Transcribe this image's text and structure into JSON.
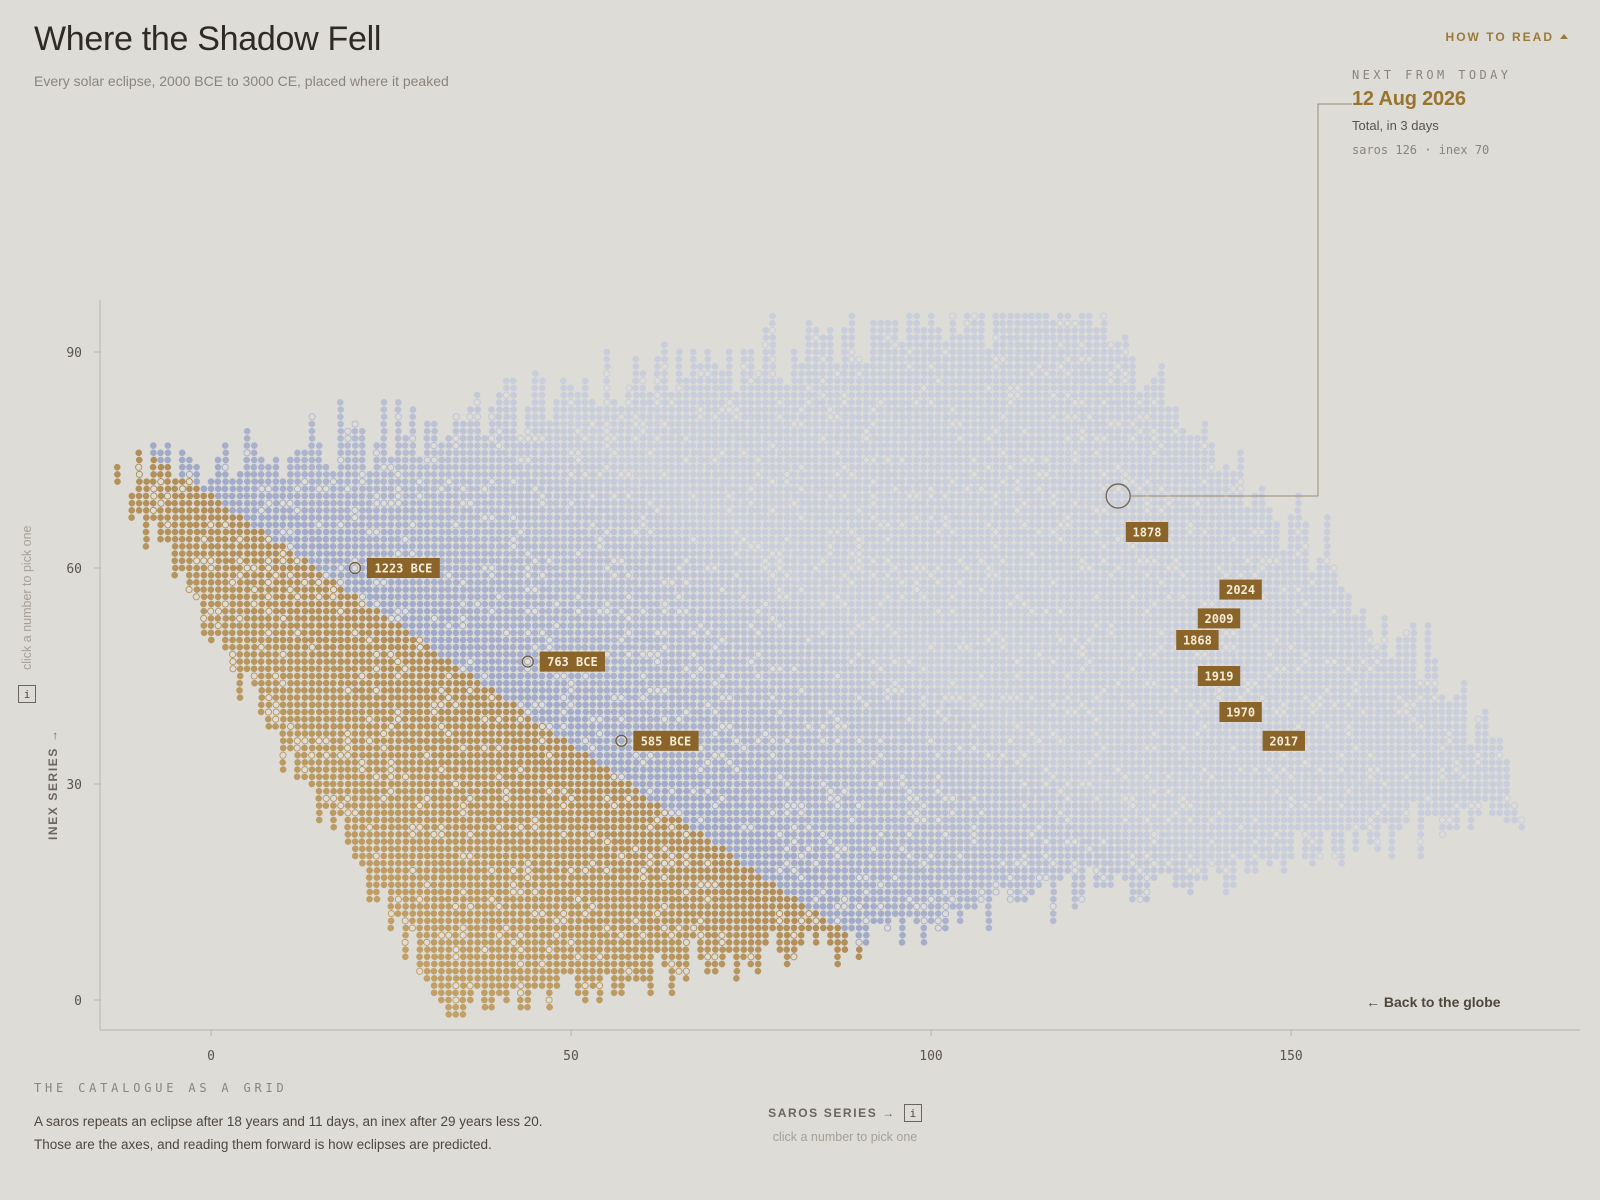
{
  "header": {
    "title": "Where the Shadow Fell",
    "subtitle": "Every solar eclipse, 2000 BCE to 3000 CE, placed where it peaked",
    "how_to_read": "HOW TO READ"
  },
  "next_eclipse": {
    "heading": "NEXT FROM TODAY",
    "date": "12 Aug 2026",
    "type": "Total, in 3 days",
    "series": "saros 126 · inex 70"
  },
  "back_link": "← Back to the globe",
  "catalogue": {
    "heading": "THE CATALOGUE AS A GRID",
    "text": "A saros repeats an eclipse after 18 years and 11 days, an inex after 29 years less 20. Those are the axes, and reading them forward is how eclipses are predicted."
  },
  "axes": {
    "x_title": "SAROS SERIES →",
    "x_hint": "click a number to pick one",
    "y_title": "INEX SERIES →",
    "y_hint": "click a number to pick one",
    "info_label": "i"
  },
  "colors": {
    "background": "#dedcd7",
    "past_ancient": "#cdac6a",
    "past_recent": "#8c6234",
    "future": "#9aa4c6",
    "future_far": "#c7ccdc",
    "label_bg": "#8a6428",
    "accent": "#98742e"
  },
  "chart_data": {
    "type": "scatter",
    "xlabel": "SAROS SERIES →",
    "ylabel": "INEX SERIES →",
    "xlim": [
      -15,
      190
    ],
    "ylim": [
      -4,
      96
    ],
    "xticks": [
      0,
      50,
      100,
      150
    ],
    "yticks": [
      0,
      30,
      60,
      90
    ],
    "grid": false,
    "series_description": "each dot is one eclipse at (saros, inex); colour shifts from gold (ancient) to brown (recent) to blue (future)",
    "highlight": {
      "saros": 126,
      "inex": 70,
      "label": "12 Aug 2026"
    },
    "annotations": [
      {
        "label": "1223 BCE",
        "saros": 20,
        "inex": 60,
        "marker": true
      },
      {
        "label": "763 BCE",
        "saros": 44,
        "inex": 47,
        "marker": true
      },
      {
        "label": "585 BCE",
        "saros": 57,
        "inex": 36,
        "marker": true
      },
      {
        "label": "1878",
        "saros": 130,
        "inex": 65,
        "marker": false
      },
      {
        "label": "2024",
        "saros": 143,
        "inex": 57,
        "marker": false
      },
      {
        "label": "2009",
        "saros": 140,
        "inex": 53,
        "marker": false
      },
      {
        "label": "1868",
        "saros": 137,
        "inex": 50,
        "marker": false
      },
      {
        "label": "1919",
        "saros": 140,
        "inex": 45,
        "marker": false
      },
      {
        "label": "1970",
        "saros": 143,
        "inex": 40,
        "marker": false
      },
      {
        "label": "2017",
        "saros": 149,
        "inex": 36,
        "marker": false
      }
    ]
  }
}
